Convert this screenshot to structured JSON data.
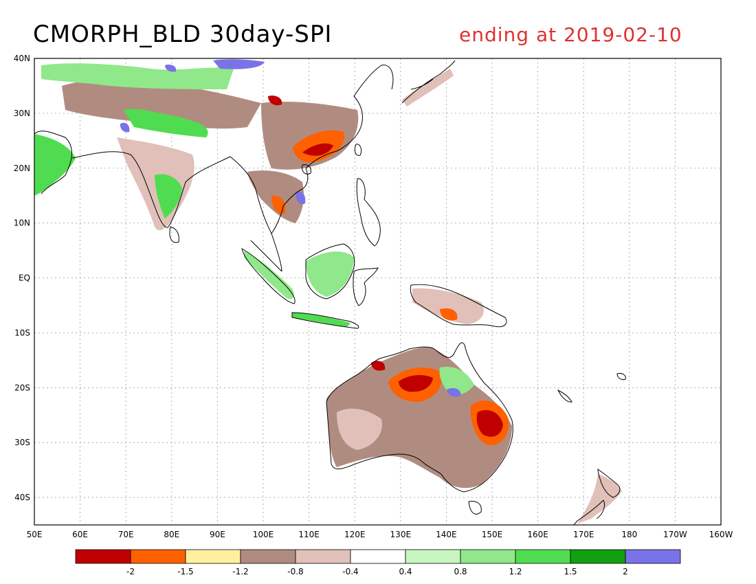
{
  "title": {
    "main": "CMORPH_BLD 30day-SPI",
    "subtitle": "ending at 2019-02-10"
  },
  "map": {
    "projection": "lat-lon",
    "lon_range": [
      50,
      200
    ],
    "lat_range": [
      -45,
      40
    ],
    "grid": true,
    "lon_ticks": [
      "50E",
      "60E",
      "70E",
      "80E",
      "90E",
      "100E",
      "110E",
      "120E",
      "130E",
      "140E",
      "150E",
      "160E",
      "170E",
      "180",
      "170W",
      "160W"
    ],
    "lat_ticks": [
      "40N",
      "30N",
      "20N",
      "10N",
      "EQ",
      "10S",
      "20S",
      "30S",
      "40S"
    ]
  },
  "legend": {
    "colors": [
      "#c00000",
      "#ff6000",
      "#fff0a0",
      "#b08c80",
      "#e0c0b8",
      "#ffffff",
      "#c8f5c0",
      "#90e88a",
      "#50dc50",
      "#10a010",
      "#7a72e8"
    ],
    "labels": [
      "-2",
      "-1.5",
      "-1.2",
      "-0.8",
      "-0.4",
      "0.4",
      "0.8",
      "1.2",
      "1.5",
      "2"
    ]
  },
  "colors": {
    "subtitle": "#e03030",
    "title": "#000000",
    "coast": "#000000",
    "grid": "#9a9a9a"
  }
}
